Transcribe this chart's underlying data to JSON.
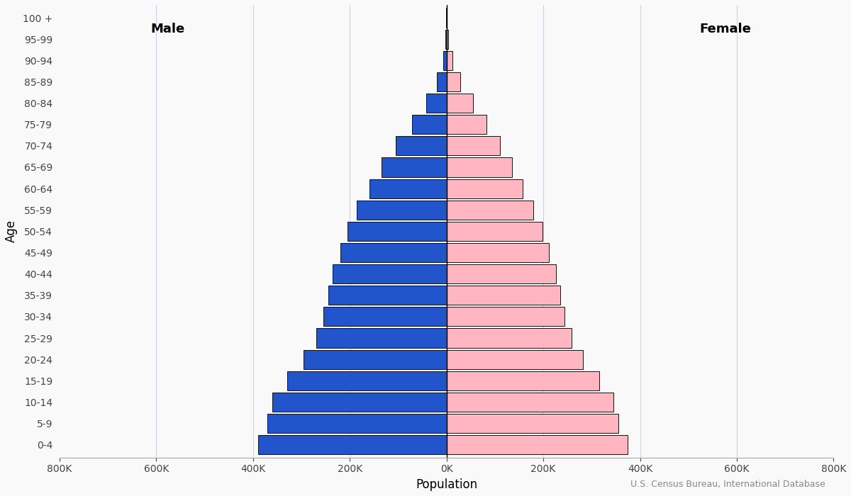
{
  "age_groups": [
    "0-4",
    "5-9",
    "10-14",
    "15-19",
    "20-24",
    "25-29",
    "30-34",
    "35-39",
    "40-44",
    "45-49",
    "50-54",
    "55-59",
    "60-64",
    "65-69",
    "70-74",
    "75-79",
    "80-84",
    "85-89",
    "90-94",
    "95-99",
    "100 +"
  ],
  "male": [
    390000,
    370000,
    360000,
    330000,
    295000,
    270000,
    255000,
    245000,
    235000,
    220000,
    205000,
    185000,
    160000,
    135000,
    105000,
    72000,
    42000,
    20000,
    7500,
    2000,
    400
  ],
  "female": [
    375000,
    355000,
    345000,
    315000,
    282000,
    258000,
    244000,
    235000,
    226000,
    212000,
    198000,
    180000,
    158000,
    136000,
    110000,
    82000,
    54000,
    29000,
    12000,
    3500,
    800
  ],
  "male_color": "#2255cc",
  "female_color": "#ffb6c1",
  "bar_edge_color": "#111111",
  "xlabel": "Population",
  "ylabel": "Age",
  "xlim": 800000,
  "male_label": "Male",
  "female_label": "Female",
  "source_text": "U.S. Census Bureau, International Database",
  "background_color": "#f9f9f9",
  "grid_color": "#c8d4e8",
  "bar_height": 0.9
}
